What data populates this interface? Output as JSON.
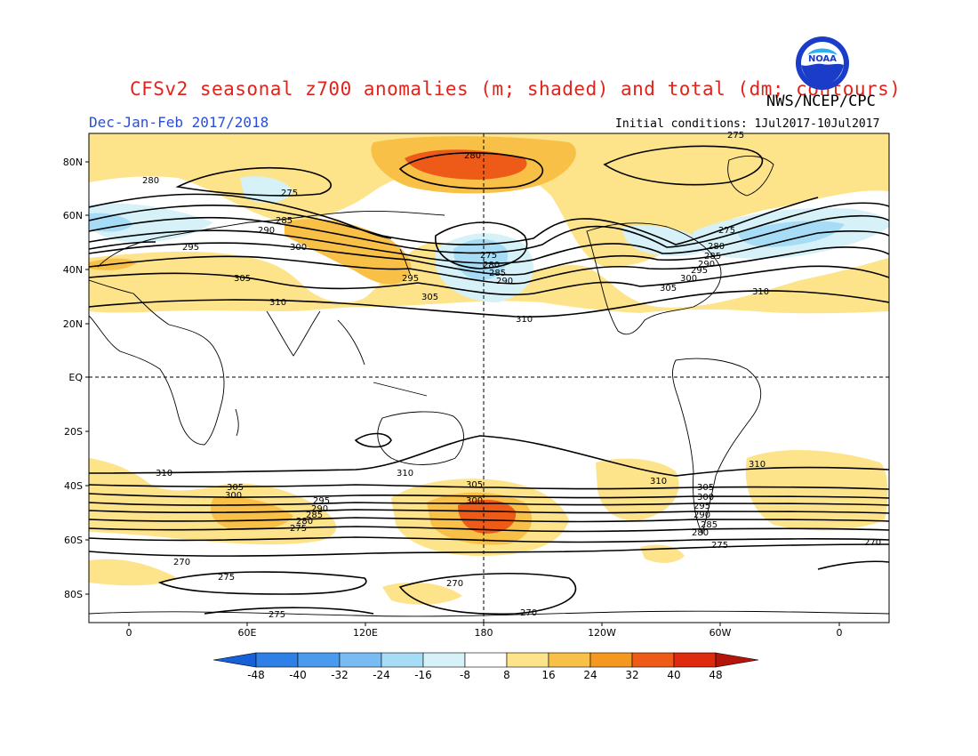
{
  "header": {
    "title": "CFSv2 seasonal z700 anomalies (m; shaded) and total (dm; contours)",
    "agency": "NWS/NCEP/CPC",
    "season": "Dec-Jan-Feb 2017/2018",
    "initial_conditions": "Initial conditions: 1Jul2017-10Jul2017",
    "logo_text": "NOAA"
  },
  "axes": {
    "lat_labels": [
      "80N",
      "60N",
      "40N",
      "20N",
      "EQ",
      "20S",
      "40S",
      "60S",
      "80S"
    ],
    "lon_labels": [
      "0",
      "60E",
      "120E",
      "180",
      "120W",
      "60W",
      "0"
    ]
  },
  "colorbar": {
    "ticks": [
      "-48",
      "-40",
      "-32",
      "-24",
      "-16",
      "-8",
      "8",
      "16",
      "24",
      "32",
      "40",
      "48"
    ],
    "colors": [
      "#1760d8",
      "#2f80e6",
      "#4a9aee",
      "#79bcf4",
      "#a6dcf6",
      "#d6f2f8",
      "#ffffff",
      "#fde38a",
      "#f8c046",
      "#f59822",
      "#ee5a17",
      "#e02a10",
      "#b3150c"
    ]
  },
  "contour_labels": {
    "nh": [
      "275",
      "280",
      "285",
      "290",
      "295",
      "300",
      "305",
      "310",
      "275",
      "280",
      "285",
      "290",
      "295",
      "300",
      "305",
      "310",
      "275",
      "280",
      "285",
      "290",
      "295",
      "300",
      "305",
      "310",
      "280"
    ],
    "sh": [
      "310",
      "310",
      "310",
      "310",
      "305",
      "300",
      "295",
      "290",
      "285",
      "280",
      "275",
      "305",
      "300",
      "295",
      "290",
      "285",
      "280",
      "275",
      "270",
      "270",
      "275",
      "270",
      "275",
      "270",
      "305",
      "300",
      "295",
      "290",
      "285",
      "280",
      "275"
    ]
  }
}
